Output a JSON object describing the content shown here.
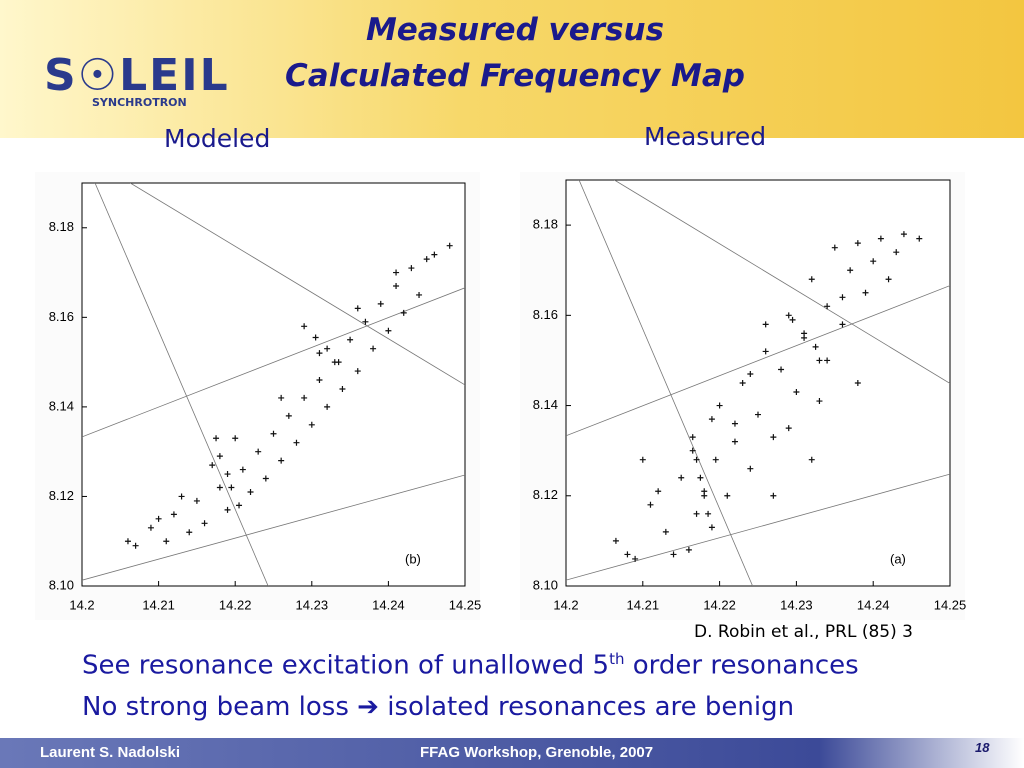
{
  "header": {
    "title_line1": "Measured versus",
    "title_line2": "Calculated Frequency Map",
    "logo": "S☉LEIL",
    "logo_sub": "SYNCHROTRON"
  },
  "chart_data": [
    {
      "type": "scatter",
      "title": "Modeled",
      "label": "(b)",
      "x": [
        14.207,
        14.209,
        14.211,
        14.212,
        14.214,
        14.215,
        14.216,
        14.218,
        14.219,
        14.221,
        14.222,
        14.223,
        14.224,
        14.225,
        14.226,
        14.227,
        14.228,
        14.229,
        14.23,
        14.231,
        14.232,
        14.233,
        14.234,
        14.235,
        14.236,
        14.237,
        14.238,
        14.239,
        14.24,
        14.241,
        14.242,
        14.243,
        14.244,
        14.246,
        14.248,
        14.2175,
        14.218,
        14.219,
        14.2195,
        14.2205,
        14.229,
        14.2305,
        14.232,
        14.2335,
        14.206,
        14.21,
        14.213,
        14.217,
        14.22,
        14.226,
        14.231,
        14.236,
        14.241,
        14.245
      ],
      "y": [
        8.109,
        8.113,
        8.11,
        8.116,
        8.112,
        8.119,
        8.114,
        8.122,
        8.117,
        8.126,
        8.121,
        8.13,
        8.124,
        8.134,
        8.128,
        8.138,
        8.132,
        8.142,
        8.136,
        8.146,
        8.14,
        8.15,
        8.144,
        8.155,
        8.148,
        8.159,
        8.153,
        8.163,
        8.157,
        8.167,
        8.161,
        8.171,
        8.165,
        8.174,
        8.176,
        8.133,
        8.129,
        8.125,
        8.122,
        8.118,
        8.158,
        8.1555,
        8.153,
        8.15,
        8.11,
        8.115,
        8.12,
        8.127,
        8.133,
        8.142,
        8.152,
        8.162,
        8.17,
        8.173
      ],
      "xlim": [
        14.2,
        14.25
      ],
      "ylim": [
        8.1,
        8.19
      ],
      "xticks": [
        14.2,
        14.21,
        14.22,
        14.23,
        14.24,
        14.25
      ],
      "yticks": [
        {
          "value": 8.1,
          "label": "8.10"
        },
        8.12,
        8.14,
        8.16,
        8.18
      ],
      "lines": [
        [
          14.2017,
          8.19,
          14.2243,
          8.1
        ],
        [
          14.2063,
          8.19,
          14.25,
          8.1449
        ],
        [
          14.2,
          8.1333,
          14.25,
          8.1666
        ],
        [
          14.2,
          8.1013,
          14.25,
          8.1248
        ]
      ]
    },
    {
      "type": "scatter",
      "title": "Measured",
      "label": "(a)",
      "x": [
        14.2065,
        14.208,
        14.209,
        14.21,
        14.211,
        14.212,
        14.213,
        14.214,
        14.215,
        14.216,
        14.2165,
        14.217,
        14.218,
        14.219,
        14.2195,
        14.22,
        14.221,
        14.222,
        14.223,
        14.224,
        14.225,
        14.226,
        14.227,
        14.228,
        14.229,
        14.23,
        14.231,
        14.232,
        14.233,
        14.234,
        14.235,
        14.236,
        14.237,
        14.238,
        14.239,
        14.24,
        14.241,
        14.242,
        14.243,
        14.244,
        14.246,
        14.2165,
        14.217,
        14.2175,
        14.218,
        14.2185,
        14.219,
        14.2295,
        14.231,
        14.2325,
        14.234,
        14.224,
        14.227,
        14.229,
        14.233,
        14.236,
        14.238,
        14.222,
        14.226,
        14.232
      ],
      "y": [
        8.11,
        8.107,
        8.106,
        8.128,
        8.118,
        8.121,
        8.112,
        8.107,
        8.124,
        8.108,
        8.13,
        8.116,
        8.121,
        8.137,
        8.128,
        8.14,
        8.12,
        8.132,
        8.145,
        8.126,
        8.138,
        8.152,
        8.133,
        8.148,
        8.16,
        8.143,
        8.155,
        8.168,
        8.15,
        8.162,
        8.175,
        8.158,
        8.17,
        8.176,
        8.165,
        8.172,
        8.177,
        8.168,
        8.174,
        8.178,
        8.177,
        8.133,
        8.128,
        8.124,
        8.12,
        8.116,
        8.113,
        8.159,
        8.156,
        8.153,
        8.15,
        8.147,
        8.12,
        8.135,
        8.141,
        8.164,
        8.145,
        8.136,
        8.158,
        8.128
      ],
      "xlim": [
        14.2,
        14.25
      ],
      "ylim": [
        8.1,
        8.19
      ],
      "xticks": [
        14.2,
        14.21,
        14.22,
        14.23,
        14.24,
        14.25
      ],
      "yticks": [
        {
          "value": 8.1,
          "label": "8.10"
        },
        8.12,
        8.14,
        8.16,
        8.18
      ],
      "lines": [
        [
          14.2017,
          8.19,
          14.2243,
          8.1
        ],
        [
          14.2063,
          8.19,
          14.25,
          8.1449
        ],
        [
          14.2,
          8.1333,
          14.25,
          8.1666
        ],
        [
          14.2,
          8.1013,
          14.25,
          8.1248
        ]
      ]
    }
  ],
  "citation": "D. Robin et al., PRL (85) 3",
  "bullets": [
    {
      "before": "See resonance excitation of unallowed 5",
      "sup": "th",
      "after": " order resonances"
    },
    {
      "before": "No strong beam loss ",
      "arrow": "➔",
      "after": " isolated resonances are benign"
    }
  ],
  "footer": {
    "author": "Laurent S. Nadolski",
    "event": "FFAG Workshop, Grenoble, 2007",
    "page": "18"
  }
}
